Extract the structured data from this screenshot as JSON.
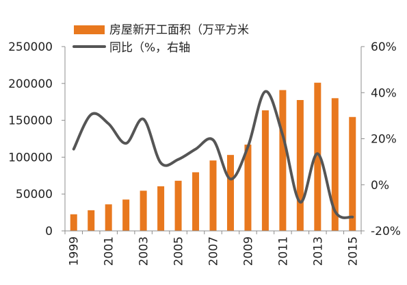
{
  "chart_data": {
    "type": "bar+line",
    "title": "",
    "x": [
      "1999",
      "2000",
      "2001",
      "2002",
      "2003",
      "2004",
      "2005",
      "2006",
      "2007",
      "2008",
      "2009",
      "2010",
      "2011",
      "2012",
      "2013",
      "2014",
      "2015"
    ],
    "x_tick_labels": [
      "1999",
      "2001",
      "2003",
      "2005",
      "2007",
      "2009",
      "2011",
      "2013",
      "2015"
    ],
    "series": [
      {
        "name": "房屋新开工面积（万平方米",
        "type": "bar",
        "axis": "left",
        "color": "#E8781E",
        "values": [
          22500,
          28000,
          36000,
          42500,
          54500,
          60500,
          68000,
          79500,
          95500,
          103000,
          117000,
          163500,
          191000,
          177500,
          201000,
          180000,
          154500
        ]
      },
      {
        "name": "同比（%，右轴",
        "type": "line",
        "axis": "right",
        "color": "#555555",
        "values": [
          15.5,
          30.5,
          26.5,
          18,
          28.5,
          9.5,
          11,
          15.5,
          19.5,
          2.5,
          16.5,
          40.5,
          21.5,
          -7.5,
          13.5,
          -11.5,
          -14
        ]
      }
    ],
    "y_left": {
      "range": [
        0,
        250000
      ],
      "ticks": [
        "0",
        "50000",
        "100000",
        "150000",
        "200000",
        "250000"
      ]
    },
    "y_right": {
      "range": [
        -20,
        60
      ],
      "ticks": [
        "-20%",
        "0%",
        "20%",
        "40%",
        "60%"
      ]
    },
    "legend_position": "top",
    "grid": false
  }
}
